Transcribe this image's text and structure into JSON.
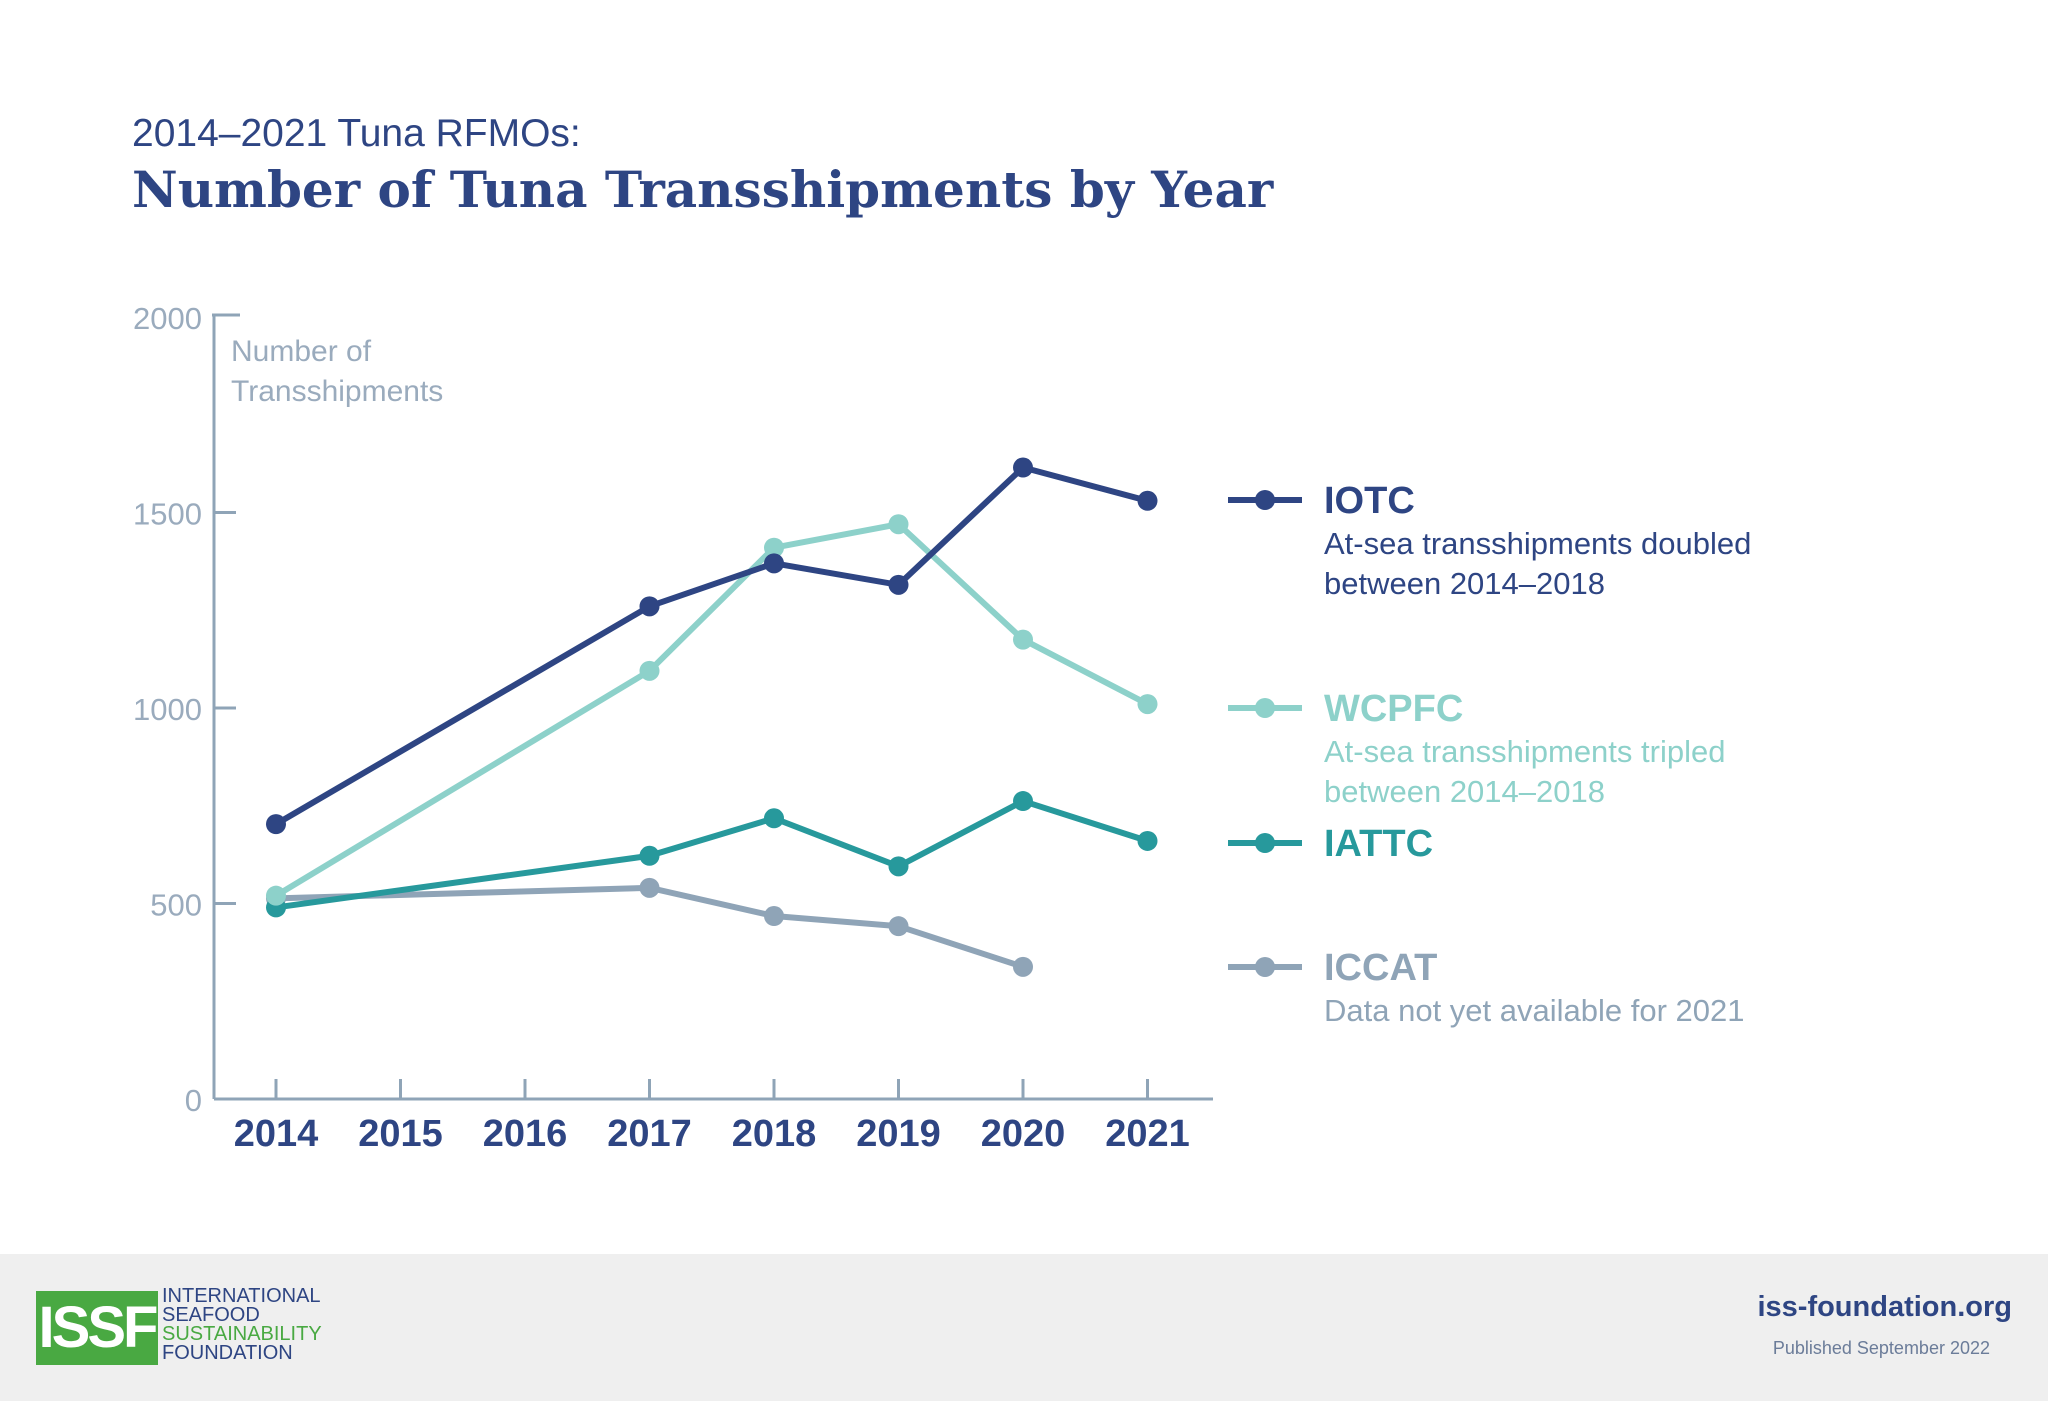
{
  "header": {
    "subtitle": "2014–2021 Tuna RFMOs:",
    "title": "Number of Tuna Transshipments by Year"
  },
  "chart_data": {
    "type": "line",
    "ylabel_lines": [
      "Number of",
      "Transshipments"
    ],
    "ylim": [
      0,
      2000
    ],
    "yticks": [
      0,
      500,
      1000,
      1500,
      2000
    ],
    "xticks": [
      "2014",
      "2015",
      "2016",
      "2017",
      "2018",
      "2019",
      "2020",
      "2021"
    ],
    "grid": false,
    "legend_placement": "right",
    "series": [
      {
        "name": "IOTC",
        "color": "#2e4583",
        "note_lines": [
          "At-sea transshipments doubled",
          "between 2014–2018"
        ],
        "x": [
          "2014",
          "2017",
          "2018",
          "2019",
          "2020",
          "2021"
        ],
        "values": [
          703,
          1260,
          1370,
          1315,
          1615,
          1530
        ]
      },
      {
        "name": "WCPFC",
        "color": "#8dd1ca",
        "note_lines": [
          "At-sea transshipments tripled",
          "between 2014–2018"
        ],
        "x": [
          "2014",
          "2017",
          "2018",
          "2019",
          "2020",
          "2021"
        ],
        "values": [
          520,
          1095,
          1410,
          1470,
          1175,
          1010
        ]
      },
      {
        "name": "IATTC",
        "color": "#27999c",
        "note_lines": [],
        "x": [
          "2014",
          "2017",
          "2018",
          "2019",
          "2020",
          "2021"
        ],
        "values": [
          490,
          622,
          718,
          595,
          762,
          660
        ]
      },
      {
        "name": "ICCAT",
        "color": "#8fa4b7",
        "note_lines": [
          "Data not yet available for 2021"
        ],
        "x": [
          "2014",
          "2017",
          "2018",
          "2019",
          "2020"
        ],
        "values": [
          513,
          540,
          468,
          442,
          338
        ]
      }
    ]
  },
  "footer": {
    "logo_mark": "ISSF",
    "logo_lines": [
      {
        "text": "INTERNATIONAL",
        "color": "#2e4583"
      },
      {
        "text": "SEAFOOD",
        "color": "#2e4583"
      },
      {
        "text": "SUSTAINABILITY",
        "color": "#49a942"
      },
      {
        "text": "FOUNDATION",
        "color": "#2e4583"
      }
    ],
    "website": "iss-foundation.org",
    "published": "Published September 2022"
  }
}
